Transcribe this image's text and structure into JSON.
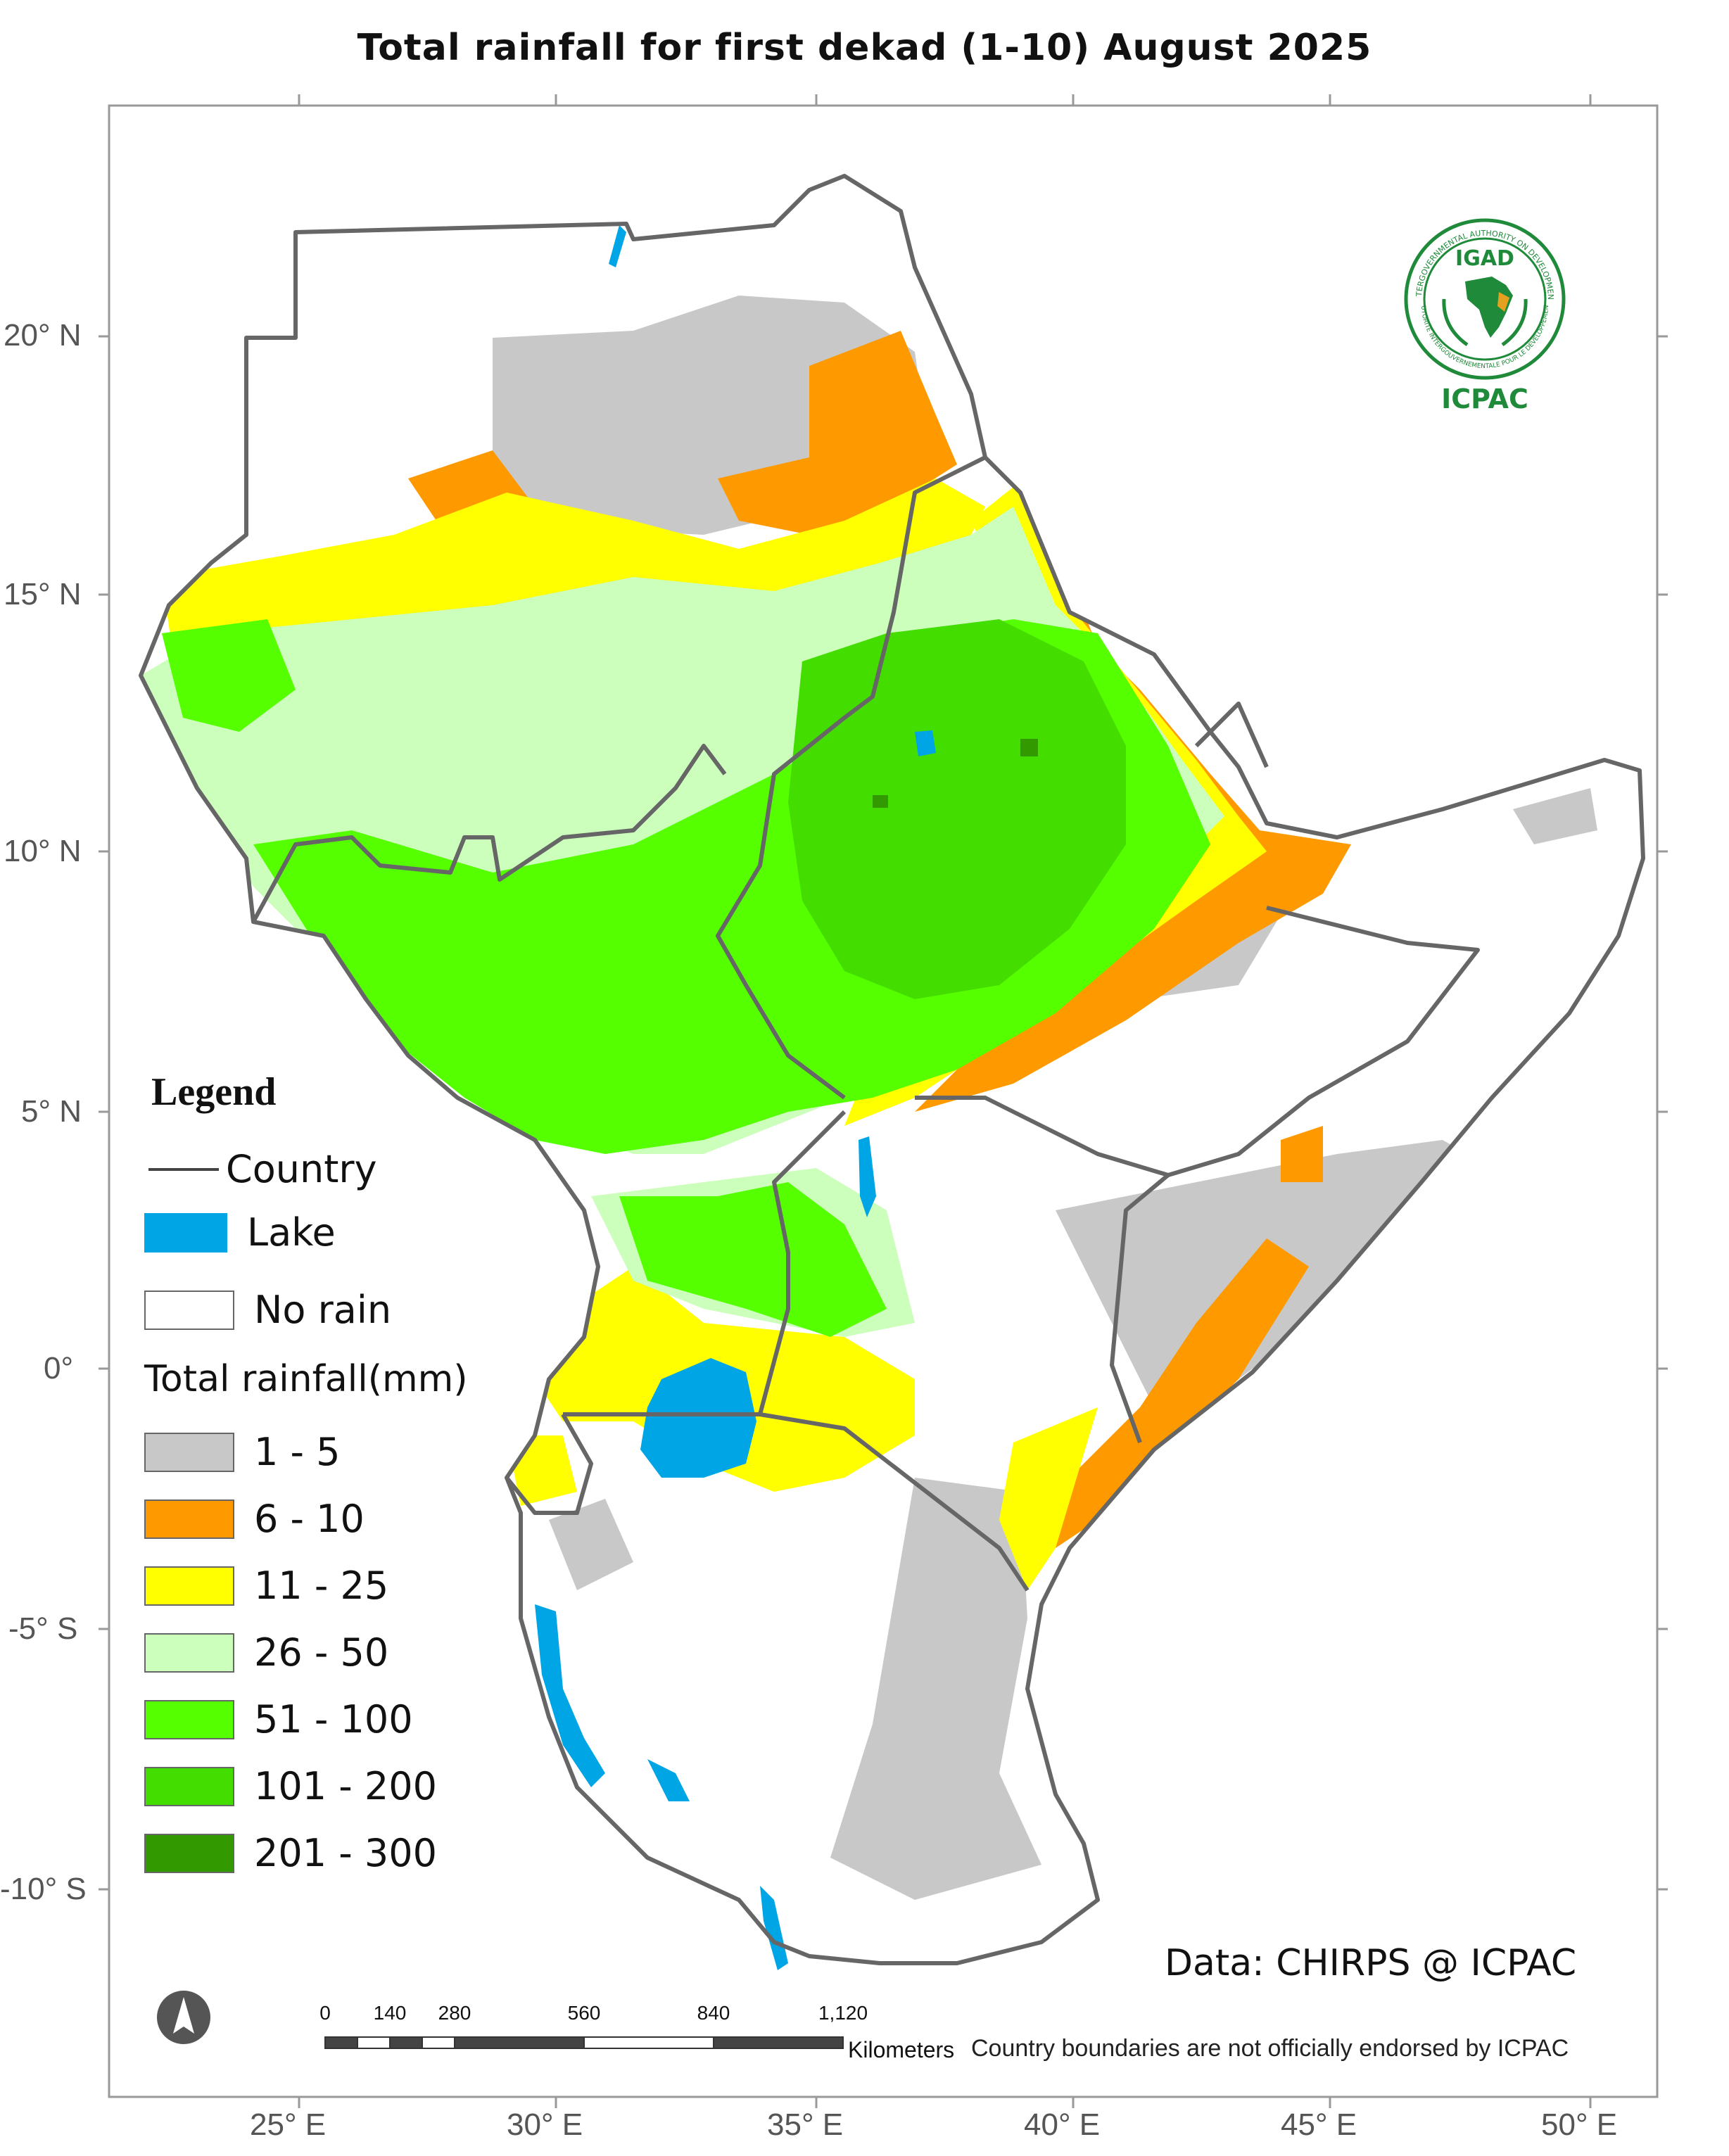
{
  "title": "Total rainfall  for  first  dekad (1-10)  August 2025",
  "axes": {
    "x_ticks": [
      "25° E",
      "30° E",
      "35° E",
      "40° E",
      "45° E",
      "50° E"
    ],
    "y_ticks": [
      "20° N",
      "15° N",
      "10° N",
      "5° N",
      "0°",
      "-5° S",
      "-10° S"
    ]
  },
  "legend": {
    "title": "Legend",
    "country_label": "Country",
    "lake_label": "Lake",
    "no_rain_label": "No rain",
    "rainfall_heading": "Total rainfall(mm)",
    "classes": [
      {
        "label": "1 - 5",
        "color": "#c8c8c8"
      },
      {
        "label": "6 - 10",
        "color": "#ff9900"
      },
      {
        "label": "11 - 25",
        "color": "#ffff00"
      },
      {
        "label": "26 - 50",
        "color": "#ccffbb"
      },
      {
        "label": "51 - 100",
        "color": "#55ff00"
      },
      {
        "label": "101 - 200",
        "color": "#44dd00"
      },
      {
        "label": "201 - 300",
        "color": "#339900"
      }
    ],
    "lake_color": "#00a5e6",
    "no_rain_color": "#ffffff",
    "country_line_color": "#555555"
  },
  "logo": {
    "acronym": "IGAD",
    "org": "ICPAC",
    "ring_text": "INTERGOVERNMENTAL AUTHORITY ON DEVELOPMENT",
    "ring_text_fr": "AUTORITE INTERGOUVERNEMENTALE POUR LE DEVELOPPEMENT"
  },
  "credit": "Data: CHIRPS @ ICPAC",
  "disclaimer": "Country boundaries are not officially endorsed by ICPAC",
  "scale_bar": {
    "ticks": [
      "0",
      "140",
      "280",
      "560",
      "840",
      "1,120"
    ],
    "unit": "Kilometers"
  },
  "north_arrow_icon": "north-arrow-icon"
}
